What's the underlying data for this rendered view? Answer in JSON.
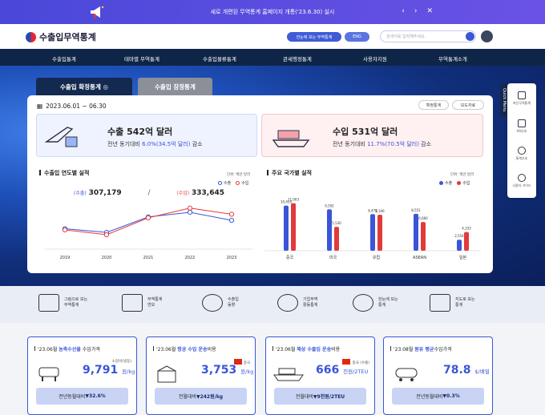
{
  "banner": {
    "text": "새로 개편된 무역통계 홈페이지 개통('23.6.30) 실시"
  },
  "header": {
    "logo": "수출입무역통계",
    "btn_search_all": "한눈에 보는 무역통계",
    "btn_eng": "ENG",
    "search_placeholder": "검색어를 입력해주세요."
  },
  "nav": [
    "수출입통계",
    "테마별 무역통계",
    "수출입물류통계",
    "관세행정통계",
    "사용자지원",
    "무역통계소개"
  ],
  "tabs": {
    "confirmed": "수출입 확정통계",
    "tentative": "수출입 잠정통계"
  },
  "period": "2023.06.01 ~ 06.30",
  "buttons": {
    "confirmed_stats": "확정통계",
    "press": "보도자료"
  },
  "export_summary": {
    "title": "수출 542억 달러",
    "pre": "전년 동기대비 ",
    "change": "6.0%(34.5억 달러)",
    "post": " 감소"
  },
  "import_summary": {
    "title": "수입 531억 달러",
    "pre": "전년 동기대비 ",
    "change": "11.7%(70.5억 달러)",
    "post": " 감소"
  },
  "yearly": {
    "title": "수출입 연도별 실적",
    "unit": "단위: 백만 달러",
    "legend_export": "수출",
    "legend_import": "수입",
    "export_label": "(수출)",
    "export_value": "307,179",
    "import_label": "(수입)",
    "import_value": "333,645"
  },
  "country": {
    "title": "주요 국가별 실적",
    "unit": "단위: 백만 달러",
    "legend_export": "수출",
    "legend_import": "수입"
  },
  "colors": {
    "export": "#3a55d8",
    "import": "#e23a3a"
  },
  "chart_data": [
    {
      "type": "line",
      "x": [
        "2019",
        "2020",
        "2021",
        "2022",
        "2023"
      ],
      "series": [
        {
          "name": "수출",
          "values": [
            271000,
            255000,
            322000,
            342000,
            307179
          ]
        },
        {
          "name": "수입",
          "values": [
            266000,
            245000,
            318000,
            360000,
            333645
          ]
        }
      ]
    },
    {
      "type": "bar",
      "categories": [
        "중국",
        "미국",
        "유럽",
        "ASEAN",
        "일본"
      ],
      "series": [
        {
          "name": "수출",
          "values": [
            10459,
            9592,
            8475,
            8551,
            2554
          ]
        },
        {
          "name": "수입",
          "values": [
            11003,
            5530,
            8346,
            6660,
            4333
          ]
        }
      ],
      "data_labels": {
        "수출": [
          "10,459",
          "9,592",
          "8,475",
          "8,551",
          "2,554"
        ],
        "수입": [
          "11,003",
          "5,530",
          "8,346",
          "6,660",
          "4,333"
        ]
      }
    }
  ],
  "quick": {
    "label": "Quick Menu",
    "items": [
      "최신무역통계",
      "HS부호",
      "통계부호",
      "사용자 가이드"
    ]
  },
  "band": [
    {
      "l1": "그림으로 보는",
      "l2": "무역통계"
    },
    {
      "l1": "무역통계",
      "l2": "연보"
    },
    {
      "l1": "수출입",
      "l2": "동향"
    },
    {
      "l1": "기업무역",
      "l2": "활동통계"
    },
    {
      "l1": "한눈에 보는",
      "l2": "통계"
    },
    {
      "l1": "지도로 보는",
      "l2": "통계"
    }
  ],
  "cards": [
    {
      "pre": "'23.06월 ",
      "hl": "농축수산물",
      "post": " 수입가격",
      "note": "소갈비(냉동)",
      "value": "9,791",
      "unit": "원/kg",
      "cmp": "전년동월대비 ",
      "chg": "▼32.6%"
    },
    {
      "pre": "'23.06월 ",
      "hl": "항공 수입 운송",
      "post": "비용",
      "note": "중국",
      "value": "3,753",
      "unit": "원/kg",
      "cmp": "전월대비 ",
      "chg": "▼242원/kg"
    },
    {
      "pre": "'23.06월 ",
      "hl": "해상 수출입 운송",
      "post": "비용",
      "note": "중국 (수출)",
      "value": "666",
      "unit": "천원/2TEU",
      "cmp": "전월대비 ",
      "chg": "▼9천원/2TEU"
    },
    {
      "pre": "'23.08월 ",
      "hl": "원유 평균",
      "post": "수입가격",
      "note": "",
      "value": "78.8",
      "unit": "$/배럴",
      "cmp": "전년동월대비 ",
      "chg": "▼0.3%"
    }
  ]
}
